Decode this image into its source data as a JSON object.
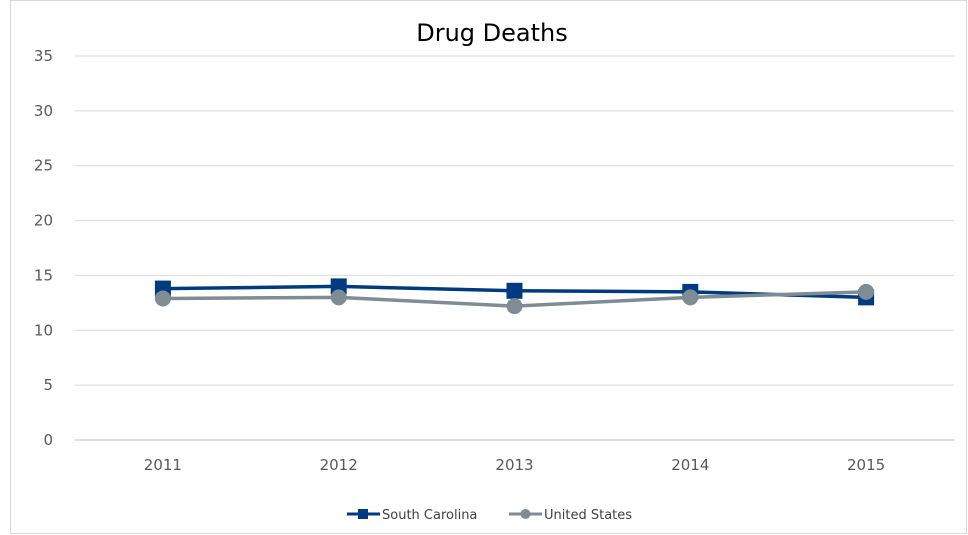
{
  "chart_data": {
    "type": "line",
    "title": "Drug Deaths",
    "xlabel": "",
    "ylabel": "",
    "categories": [
      "2011",
      "2012",
      "2013",
      "2014",
      "2015"
    ],
    "ylim": [
      0,
      35
    ],
    "yticks": [
      0,
      5,
      10,
      15,
      20,
      25,
      30,
      35
    ],
    "grid": true,
    "legend_position": "bottom",
    "series": [
      {
        "name": "South Carolina",
        "values": [
          13.8,
          14.0,
          13.6,
          13.5,
          13.0
        ],
        "color": "#003A80",
        "marker": "square"
      },
      {
        "name": "United States",
        "values": [
          12.9,
          13.0,
          12.2,
          13.0,
          13.5
        ],
        "color": "#7F8C93",
        "marker": "circle"
      }
    ]
  }
}
